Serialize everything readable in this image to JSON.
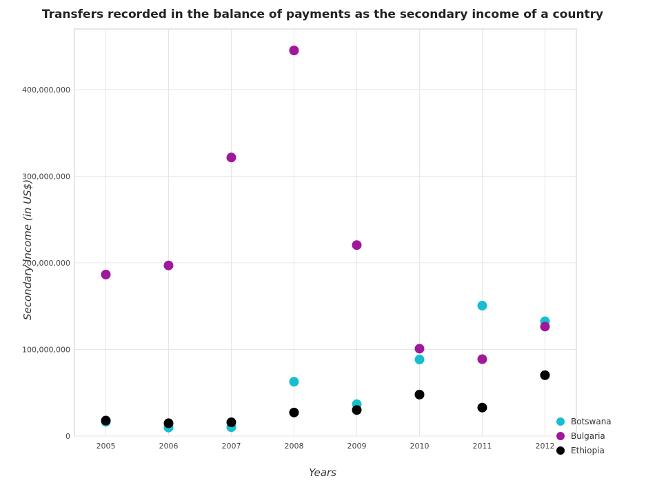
{
  "chart_data": {
    "type": "scatter",
    "title": "Transfers recorded in the balance of payments as the secondary income of a country",
    "xlabel": "Years",
    "ylabel": "Secondary income (in US$)",
    "categories": [
      "2005",
      "2006",
      "2007",
      "2008",
      "2009",
      "2010",
      "2011",
      "2012"
    ],
    "ylim": [
      0,
      470000000
    ],
    "yticks": [
      0,
      100000000,
      200000000,
      300000000,
      400000000
    ],
    "ytick_labels": [
      "0",
      "100,000,000",
      "200,000,000",
      "300,000,000",
      "400,000,000"
    ],
    "grid": true,
    "legend_position": "bottom-right",
    "series": [
      {
        "name": "Botswana",
        "color": "#17becf",
        "values": [
          16500000,
          9800000,
          10200000,
          62700000,
          36800000,
          88400000,
          150600000,
          132500000
        ]
      },
      {
        "name": "Bulgaria",
        "color": "#a0199a",
        "values": [
          186500000,
          197000000,
          321600000,
          445200000,
          220500000,
          100900000,
          88800000,
          126400000
        ]
      },
      {
        "name": "Ethiopia",
        "color": "#000000",
        "values": [
          17900000,
          14800000,
          15900000,
          27200000,
          30100000,
          47900000,
          32900000,
          70300000
        ]
      }
    ]
  }
}
